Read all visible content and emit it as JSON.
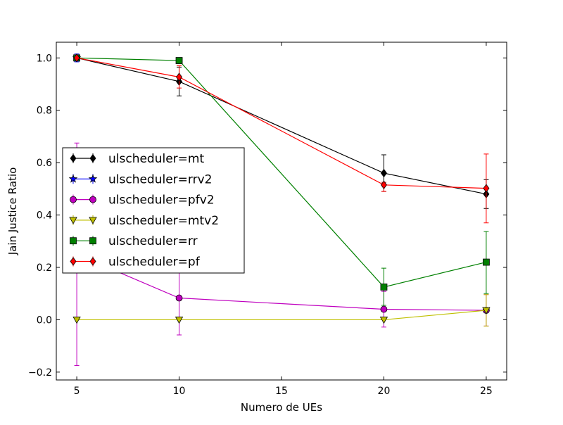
{
  "chart_data": {
    "type": "line",
    "title": "",
    "xlabel": "Numero de UEs",
    "ylabel": "Jain Justice Ratio",
    "xlim": [
      4,
      26
    ],
    "ylim": [
      -0.23,
      1.06
    ],
    "x": [
      5,
      10,
      20,
      25
    ],
    "xticks": [
      5,
      10,
      15,
      20,
      25
    ],
    "yticks": [
      -0.2,
      0.0,
      0.2,
      0.4,
      0.6,
      0.8,
      1.0
    ],
    "xtick_labels": [
      "5",
      "10",
      "15",
      "20",
      "25"
    ],
    "ytick_labels": [
      "−0.2",
      "0.0",
      "0.2",
      "0.4",
      "0.6",
      "0.8",
      "1.0"
    ],
    "grid": false,
    "legend_position": "left-center",
    "series": [
      {
        "name": "ulscheduler=mt",
        "color": "#000000",
        "marker": "diamond",
        "values": [
          1.0,
          0.91,
          0.56,
          0.48
        ],
        "err_low": [
          1.0,
          0.855,
          0.49,
          0.425
        ],
        "err_high": [
          1.0,
          0.965,
          0.63,
          0.535
        ]
      },
      {
        "name": "ulscheduler=rrv2",
        "color": "#0000ff",
        "marker": "star",
        "values": [
          1.0,
          null,
          null,
          null
        ],
        "err_low": [
          0.985,
          null,
          null,
          null
        ],
        "err_high": [
          1.015,
          null,
          null,
          null
        ]
      },
      {
        "name": "ulscheduler=pfv2",
        "color": "#bf00bf",
        "marker": "circle",
        "values": [
          0.25,
          0.083,
          0.04,
          0.036
        ],
        "err_low": [
          -0.175,
          -0.058,
          -0.028,
          -0.024
        ],
        "err_high": [
          0.675,
          0.225,
          0.108,
          0.096
        ]
      },
      {
        "name": "ulscheduler=mtv2",
        "color": "#bfbf00",
        "marker": "triangle-down",
        "values": [
          0.0,
          0.0,
          0.0,
          0.036
        ],
        "err_low": [
          0.0,
          0.0,
          0.0,
          -0.024
        ],
        "err_high": [
          0.0,
          0.0,
          0.0,
          0.096
        ]
      },
      {
        "name": "ulscheduler=rr",
        "color": "#008000",
        "marker": "square",
        "values": [
          1.0,
          0.99,
          0.125,
          0.22
        ],
        "err_low": [
          1.0,
          0.99,
          0.055,
          0.1
        ],
        "err_high": [
          1.0,
          0.99,
          0.197,
          0.337
        ]
      },
      {
        "name": "ulscheduler=pf",
        "color": "#ff0000",
        "marker": "diamond",
        "values": [
          1.0,
          0.927,
          0.515,
          0.502
        ],
        "err_low": [
          1.0,
          0.885,
          0.49,
          0.37
        ],
        "err_high": [
          1.0,
          0.97,
          0.525,
          0.633
        ]
      }
    ]
  }
}
